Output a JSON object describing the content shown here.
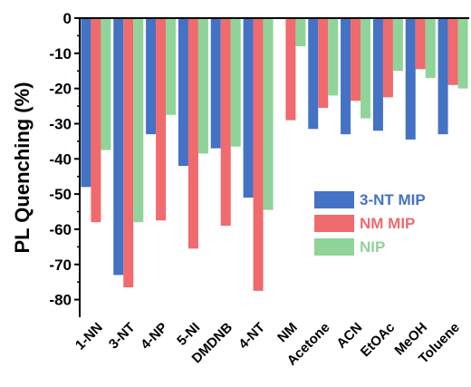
{
  "chart_data": {
    "type": "bar",
    "ylabel": "PL Quenching (%)",
    "xlabel": "",
    "ylim": [
      -85,
      0
    ],
    "yticks": [
      0,
      -10,
      -20,
      -30,
      -40,
      -50,
      -60,
      -70,
      -80
    ],
    "categories": [
      "1-NN",
      "3-NT",
      "4-NP",
      "5-NI",
      "DMDNB",
      "4-NT",
      "NM",
      "Acetone",
      "ACN",
      "EtOAc",
      "MeOH",
      "Toluene"
    ],
    "series": [
      {
        "name": "3-NT MIP",
        "color": "#4472c4",
        "values": [
          -48,
          -73,
          -33,
          -42,
          -37,
          -51,
          null,
          -31.5,
          -33,
          -32,
          -34.5,
          -33
        ]
      },
      {
        "name": "NM MIP",
        "color": "#f06a6e",
        "values": [
          -58,
          -76.5,
          -57.5,
          -65.5,
          -59,
          -77.5,
          -29,
          -25.5,
          -23.5,
          -22.5,
          -14.5,
          -19
        ]
      },
      {
        "name": "NIP",
        "color": "#90d49a",
        "values": [
          -37.5,
          -58,
          -27.5,
          -38.5,
          -36.5,
          -54.5,
          -8,
          -22,
          -28.5,
          -15,
          -17,
          -20
        ]
      }
    ],
    "legend_position": "center-right",
    "grid": false
  }
}
